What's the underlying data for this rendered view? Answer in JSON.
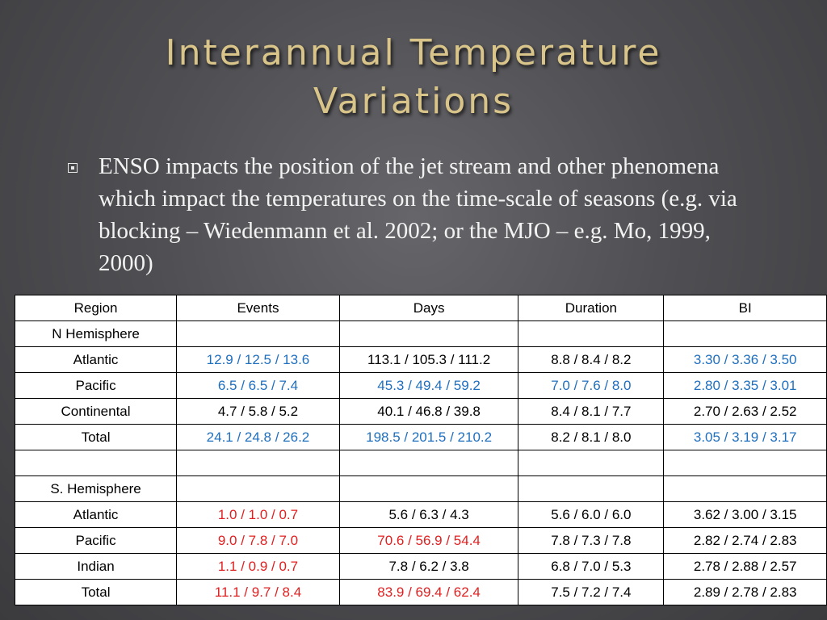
{
  "slide": {
    "title_line1": "Interannual Temperature",
    "title_line2": "Variations",
    "bullet": "ENSO impacts the position of the jet stream and other phenomena which impact the temperatures on the time-scale of seasons (e.g. via blocking – Wiedenmann et al. 2002; or the MJO – e.g. Mo, 1999, 2000)"
  },
  "colors": {
    "blue": "#1f6fbf",
    "red": "#e02020",
    "title": "#d9c58a"
  },
  "table": {
    "headers": [
      "Region",
      "Events",
      "Days",
      "Duration",
      "BI"
    ],
    "rows": [
      [
        "N Hemisphere",
        "",
        "",
        "",
        ""
      ],
      [
        "Atlantic",
        "12.9 / 12.5 / 13.6",
        "113.1 / 105.3 / 111.2",
        "8.8 / 8.4 / 8.2",
        "3.30 / 3.36 / 3.50"
      ],
      [
        "Pacific",
        "6.5 / 6.5 / 7.4",
        "45.3 / 49.4 / 59.2",
        "7.0 / 7.6 / 8.0",
        "2.80 / 3.35 / 3.01"
      ],
      [
        "Continental",
        "4.7 / 5.8 / 5.2",
        "40.1 / 46.8 / 39.8",
        "8.4 / 8.1 / 7.7",
        "2.70 / 2.63 / 2.52"
      ],
      [
        "Total",
        "24.1 / 24.8 / 26.2",
        "198.5 / 201.5 / 210.2",
        "8.2 / 8.1 / 8.0",
        "3.05 / 3.19 / 3.17"
      ],
      [
        "",
        "",
        "",
        "",
        ""
      ],
      [
        "S. Hemisphere",
        "",
        "",
        "",
        ""
      ],
      [
        "Atlantic",
        "1.0 / 1.0 / 0.7",
        "5.6 / 6.3 / 4.3",
        "5.6 / 6.0 / 6.0",
        "3.62 / 3.00 / 3.15"
      ],
      [
        "Pacific",
        "9.0 / 7.8 / 7.0",
        "70.6 / 56.9 / 54.4",
        "7.8 / 7.3 / 7.8",
        "2.82 / 2.74 / 2.83"
      ],
      [
        "Indian",
        "1.1 / 0.9 / 0.7",
        "7.8 / 6.2 / 3.8",
        "6.8 / 7.0 / 5.3",
        "2.78 / 2.88 / 2.57"
      ],
      [
        "Total",
        "11.1 / 9.7 / 8.4",
        "83.9 / 69.4 / 62.4",
        "7.5 / 7.2 / 7.4",
        "2.89 / 2.78 / 2.83"
      ]
    ]
  }
}
